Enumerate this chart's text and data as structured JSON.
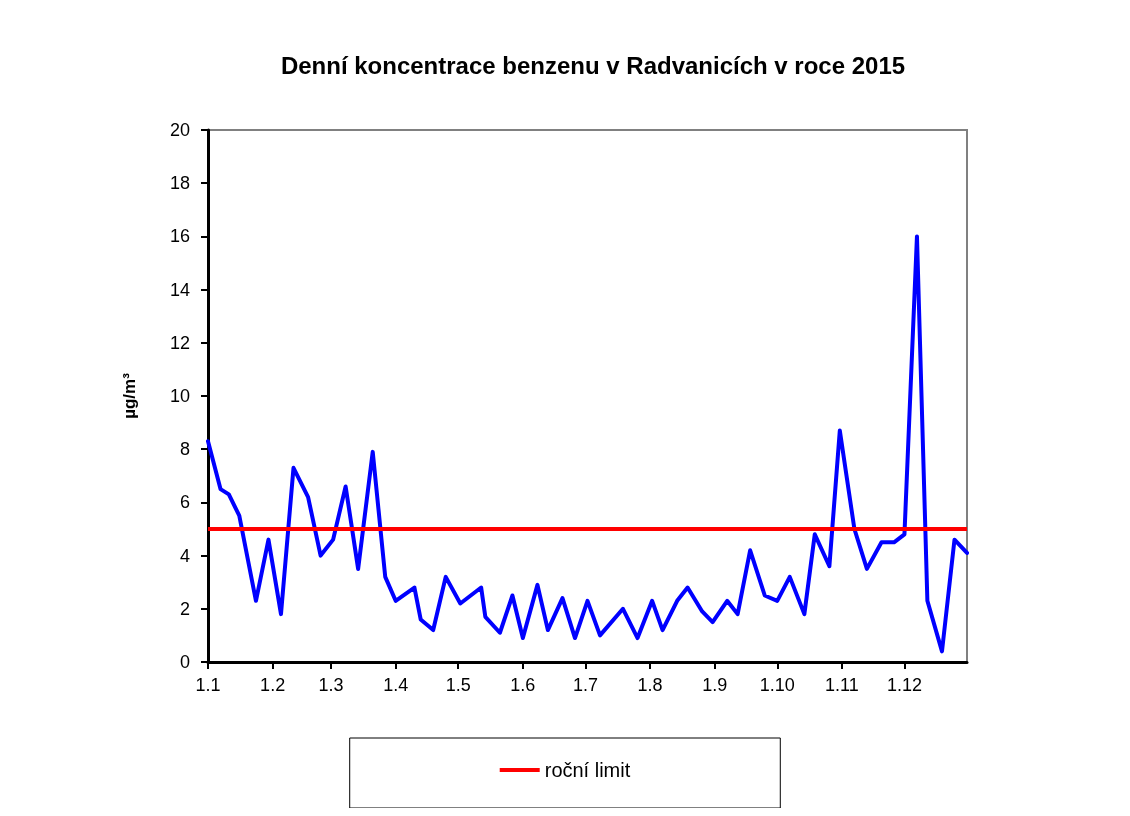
{
  "chart_data": {
    "type": "line",
    "title": "Denní koncentrace benzenu v Radvanicích v roce 2015",
    "ylabel": "µg/m³",
    "x": [
      "--01-01",
      "--01-07",
      "--01-11",
      "--01-16",
      "--01-24",
      "--01-30",
      "--02-05",
      "--02-11",
      "--02-18",
      "--02-24",
      "--03-02",
      "--03-08",
      "--03-14",
      "--03-21",
      "--03-27",
      "--04-01",
      "--04-10",
      "--04-13",
      "--04-19",
      "--04-25",
      "--05-02",
      "--05-12",
      "--05-14",
      "--05-21",
      "--05-27",
      "--06-01",
      "--06-08",
      "--06-13",
      "--06-20",
      "--06-26",
      "--07-02",
      "--07-08",
      "--07-19",
      "--07-26",
      "--08-02",
      "--08-07",
      "--08-14",
      "--08-19",
      "--08-26",
      "--08-31",
      "--09-07",
      "--09-12",
      "--09-18",
      "--09-25",
      "--10-01",
      "--10-07",
      "--10-14",
      "--10-19",
      "--10-26",
      "--10-31",
      "--11-07",
      "--11-13",
      "--11-20",
      "--11-26",
      "--12-01",
      "--12-07",
      "--12-12",
      "--12-19",
      "--12-25",
      "--12-31"
    ],
    "series": [
      {
        "color": "#0000ff",
        "values": [
          8.3,
          6.5,
          6.3,
          5.5,
          2.3,
          4.6,
          1.8,
          7.3,
          6.2,
          4.0,
          4.6,
          6.6,
          3.5,
          7.9,
          3.2,
          2.3,
          2.8,
          1.6,
          1.2,
          3.2,
          2.2,
          2.8,
          1.7,
          1.1,
          2.5,
          0.9,
          2.9,
          1.2,
          2.4,
          0.9,
          2.3,
          1.0,
          2.0,
          0.9,
          2.3,
          1.2,
          2.3,
          2.8,
          1.9,
          1.5,
          2.3,
          1.8,
          4.2,
          2.5,
          2.3,
          3.2,
          1.8,
          4.8,
          3.6,
          8.7,
          5.0,
          3.5,
          4.5,
          4.5,
          4.8,
          16.0,
          2.3,
          0.4,
          4.6,
          4.1
        ]
      }
    ],
    "xlim": [
      "--01-01",
      "--12-31"
    ],
    "xticks": [
      {
        "value": "--01-01",
        "label": "1.1"
      },
      {
        "value": "--02-01",
        "label": "1.2"
      },
      {
        "value": "--03-01",
        "label": "1.3"
      },
      {
        "value": "--04-01",
        "label": "1.4"
      },
      {
        "value": "--05-01",
        "label": "1.5"
      },
      {
        "value": "--06-01",
        "label": "1.6"
      },
      {
        "value": "--07-01",
        "label": "1.7"
      },
      {
        "value": "--08-01",
        "label": "1.8"
      },
      {
        "value": "--09-01",
        "label": "1.9"
      },
      {
        "value": "--10-01",
        "label": "1.10"
      },
      {
        "value": "--11-01",
        "label": "1.11"
      },
      {
        "value": "--12-01",
        "label": "1.12"
      }
    ],
    "ylim": [
      0,
      20
    ],
    "yticks": [
      0,
      2,
      4,
      6,
      8,
      10,
      12,
      14,
      16,
      18,
      20
    ],
    "ref_lines": [
      {
        "axis": "y",
        "value": 5,
        "label": "roční limit",
        "color": "#ff0000"
      }
    ],
    "grid": false,
    "legend": "bottom",
    "marker": "none",
    "line_style": "solid"
  }
}
